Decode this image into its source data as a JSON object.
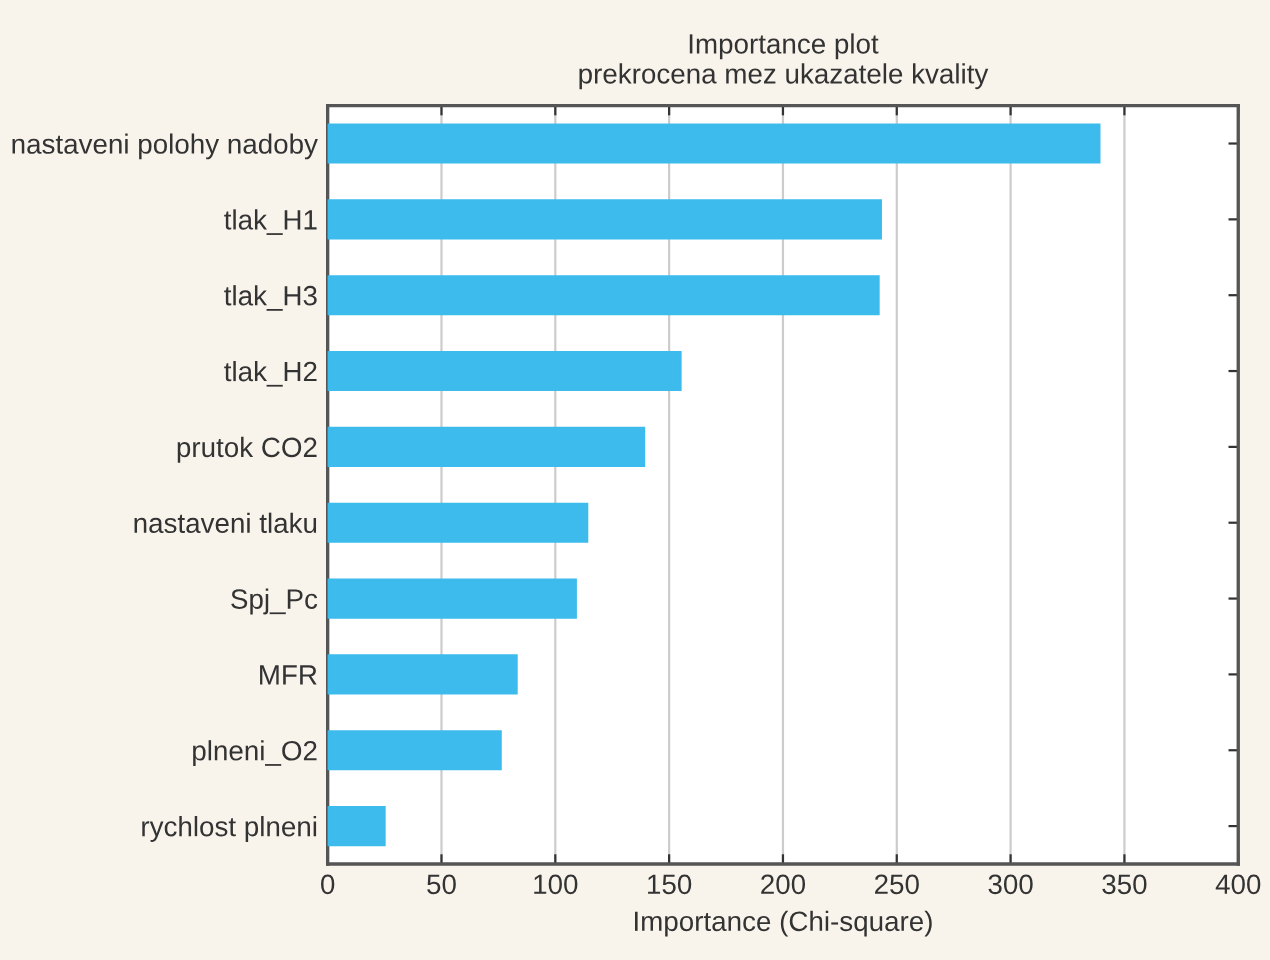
{
  "chart_data": {
    "type": "bar",
    "orientation": "horizontal",
    "title": "Importance plot\nprekrocena mez ukazatele kvality",
    "xlabel": "Importance (Chi-square)",
    "categories": [
      "nastaveni polohy nadoby",
      "tlak_H1",
      "tlak_H3",
      "tlak_H2",
      "prutok CO2",
      "nastaveni tlaku",
      "Spj_Pc",
      "MFR",
      "plneni_O2",
      "rychlost plneni"
    ],
    "values": [
      339,
      243,
      242,
      155,
      139,
      114,
      109,
      83,
      76,
      25
    ],
    "color": "#3dbbec",
    "xlim": [
      0,
      400
    ],
    "xticks": [
      0,
      50,
      100,
      150,
      200,
      250,
      300,
      350,
      400
    ],
    "grid": "x"
  }
}
